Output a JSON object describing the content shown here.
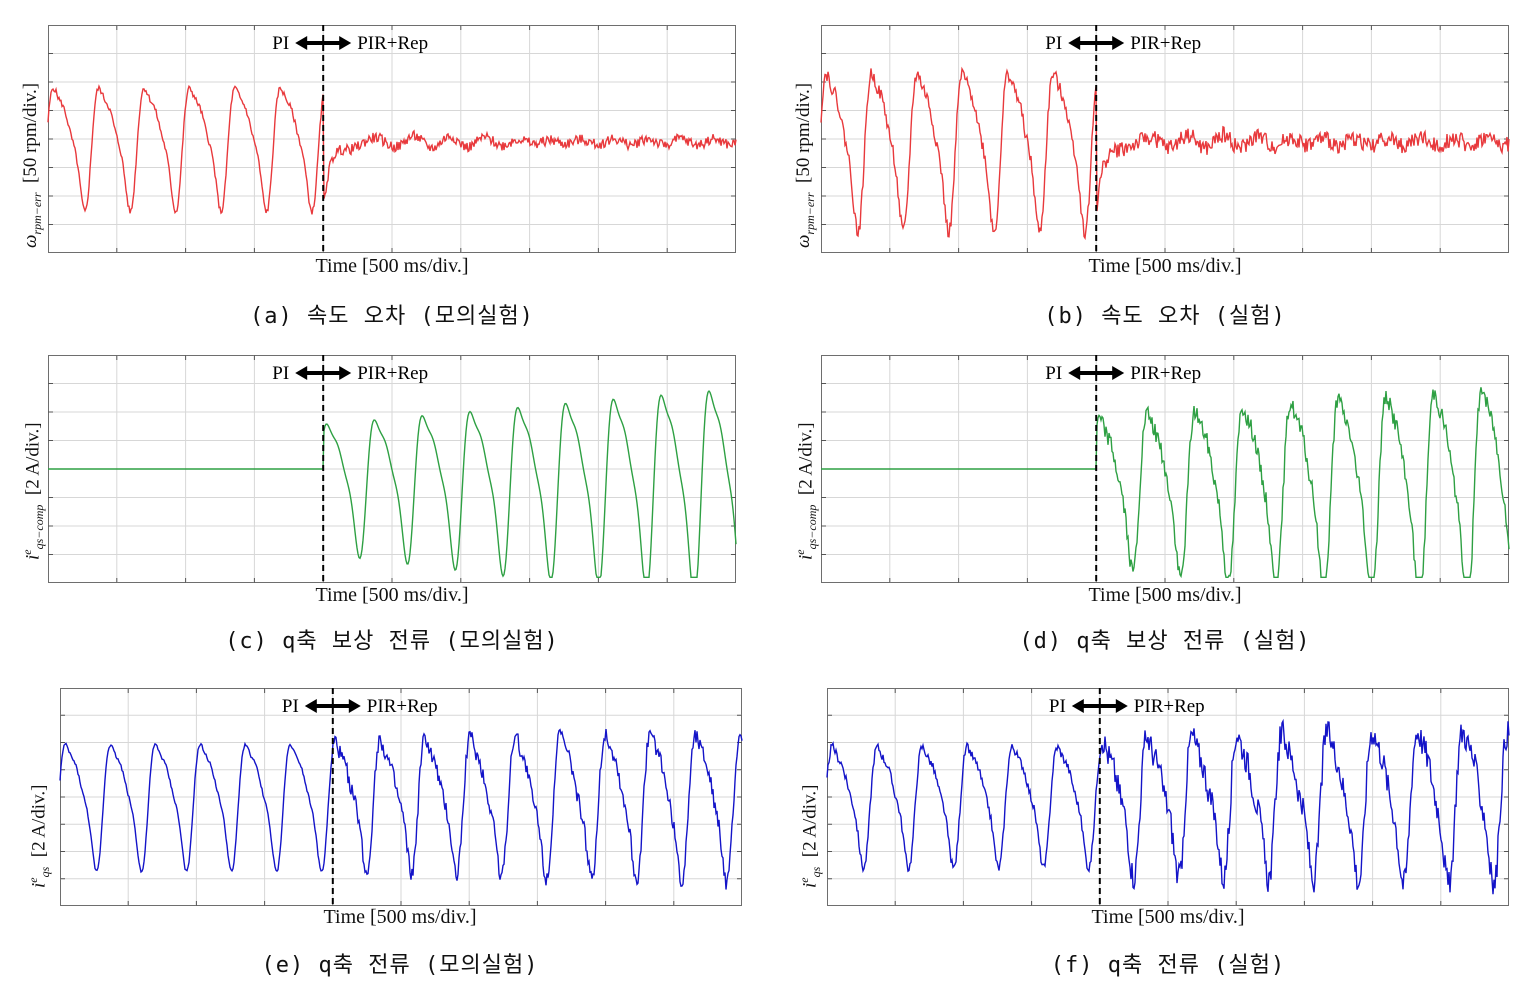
{
  "annotations": {
    "left": "PI",
    "right": "PIR+Rep"
  },
  "colors": {
    "speed": "#e8393c",
    "comp": "#2ea043",
    "iqs": "#1414c8",
    "divider": "#000000"
  },
  "chart_data": [
    {
      "id": "a",
      "type": "line",
      "caption": "(a) 속도 오차 (모의실험)",
      "xlabel": "Time [500 ms/div.]",
      "ylabel": {
        "sym": "ω",
        "sub": "rpm−err",
        "sup": "",
        "unit": "[50 rpm/div.]"
      },
      "xlim": [
        0,
        5000
      ],
      "ylim": [
        -4,
        4
      ],
      "switch_x": 2000,
      "series": [
        {
          "color_key": "speed",
          "before": {
            "amp": 1.95,
            "jitter": 0.05
          },
          "after": {
            "amp": 0.25,
            "decay": 0.6,
            "offset": 0
          }
        }
      ]
    },
    {
      "id": "b",
      "type": "line",
      "caption": "(b) 속도 오차 (실험)",
      "xlabel": "Time [500 ms/div.]",
      "ylabel": {
        "sym": "ω",
        "sub": "rpm−err",
        "sup": "",
        "unit": "[50 rpm/div.]"
      },
      "xlim": [
        0,
        5000
      ],
      "ylim": [
        -4,
        4
      ],
      "switch_x": 2000,
      "series": [
        {
          "color_key": "speed",
          "before": {
            "amp": 2.5,
            "jitter": 0.12
          },
          "after": {
            "amp": 0.35,
            "decay": 0.9,
            "offset": 0
          }
        }
      ]
    },
    {
      "id": "c",
      "type": "line",
      "caption": "(c) q축 보상 전류 (모의실험)",
      "xlabel": "Time [500 ms/div.]",
      "ylabel": {
        "sym": "i",
        "sub": "qs−comp",
        "sup": "e",
        "unit": "[2 A/div.]"
      },
      "xlim": [
        0,
        5000
      ],
      "ylim": [
        -4,
        4
      ],
      "switch_x": 2000,
      "series": [
        {
          "color_key": "comp",
          "before": {
            "amp": 0,
            "jitter": 0
          },
          "after": {
            "amp": 2.6,
            "growth": 0.5,
            "offset": -0.3
          }
        }
      ]
    },
    {
      "id": "d",
      "type": "line",
      "caption": "(d) q축 보상 전류 (실험)",
      "xlabel": "Time [500 ms/div.]",
      "ylabel": {
        "sym": "i",
        "sub": "qs−comp",
        "sup": "e",
        "unit": "[2 A/div.]"
      },
      "xlim": [
        0,
        5000
      ],
      "ylim": [
        -4,
        4
      ],
      "switch_x": 2000,
      "series": [
        {
          "color_key": "comp",
          "before": {
            "amp": 0,
            "jitter": 0
          },
          "after": {
            "amp": 3.0,
            "growth": 0.4,
            "offset": -0.4
          }
        }
      ]
    },
    {
      "id": "e",
      "type": "line",
      "caption": "(e) q축 전류 (모의실험)",
      "xlabel": "Time [500 ms/div.]",
      "ylabel": {
        "sym": "i",
        "sub": "qs",
        "sup": "e",
        "unit": "[2 A/div.]"
      },
      "xlim": [
        0,
        5000
      ],
      "ylim": [
        -4,
        4
      ],
      "switch_x": 2000,
      "series": [
        {
          "color_key": "iqs",
          "before": {
            "amp": 2.1,
            "jitter": 0.03
          },
          "after": {
            "amp": 2.3,
            "jitter": 0.12
          }
        }
      ]
    },
    {
      "id": "f",
      "type": "line",
      "caption": "(f) q축 전류 (실험)",
      "xlabel": "Time [500 ms/div.]",
      "ylabel": {
        "sym": "i",
        "sub": "qs",
        "sup": "e",
        "unit": "[2 A/div.]"
      },
      "xlim": [
        0,
        5000
      ],
      "ylim": [
        -4,
        4
      ],
      "switch_x": 2000,
      "series": [
        {
          "color_key": "iqs",
          "before": {
            "amp": 2.0,
            "jitter": 0.08
          },
          "after": {
            "amp": 2.4,
            "jitter": 0.2
          }
        }
      ]
    }
  ]
}
